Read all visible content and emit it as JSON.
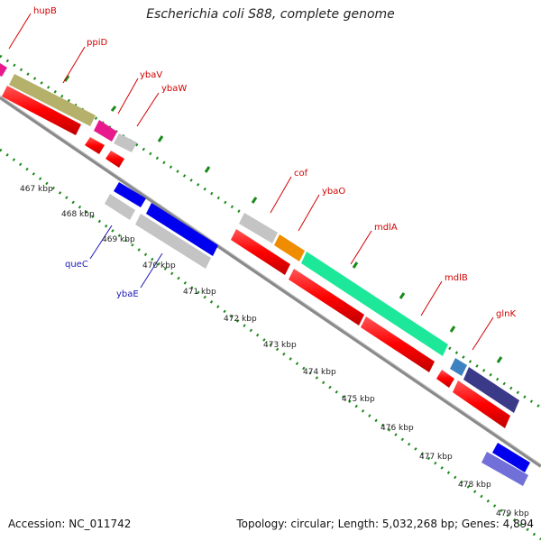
{
  "header": {
    "title": "Escherichia coli S88, complete genome"
  },
  "footer": {
    "accession": "Accession: NC_011742",
    "summary": "Topology: circular; Length: 5,032,268 bp; Genes: 4,894"
  },
  "ruler": {
    "ticks": [
      "467 kbp",
      "468 kbp",
      "469 kbp",
      "470 kbp",
      "471 kbp",
      "472 kbp",
      "473 kbp",
      "474 kbp",
      "475 kbp",
      "476 kbp",
      "477 kbp",
      "478 kbp",
      "479 kbp"
    ]
  },
  "genes_top": [
    {
      "name": "hupB",
      "color": "#e8198c"
    },
    {
      "name": "ppiD",
      "color": "#b5b06a"
    },
    {
      "name": "ybaV",
      "color": "#e8198c"
    },
    {
      "name": "ybaW",
      "color": "#bdbdbd"
    },
    {
      "name": "cof",
      "color": "#bdbdbd"
    },
    {
      "name": "ybaO",
      "color": "#f08c00"
    },
    {
      "name": "mdlA",
      "color": "#1de89a"
    },
    {
      "name": "mdlB",
      "color": "#1de89a"
    },
    {
      "name": "glnK",
      "color": "#3c82c0"
    }
  ],
  "genes_bottom": [
    {
      "name": "queC",
      "color": "#bdbdbd"
    },
    {
      "name": "ybaE",
      "color": "#bdbdbd"
    }
  ],
  "colors": {
    "cds_red": "#ff0000",
    "blue": "#0000ff",
    "purple": "#3a3a88",
    "lavender": "#7070d8",
    "backbone": "#999999",
    "ruler_green": "#1a8a1a",
    "label_red": "#d40000",
    "label_blue": "#1a1ab8"
  }
}
